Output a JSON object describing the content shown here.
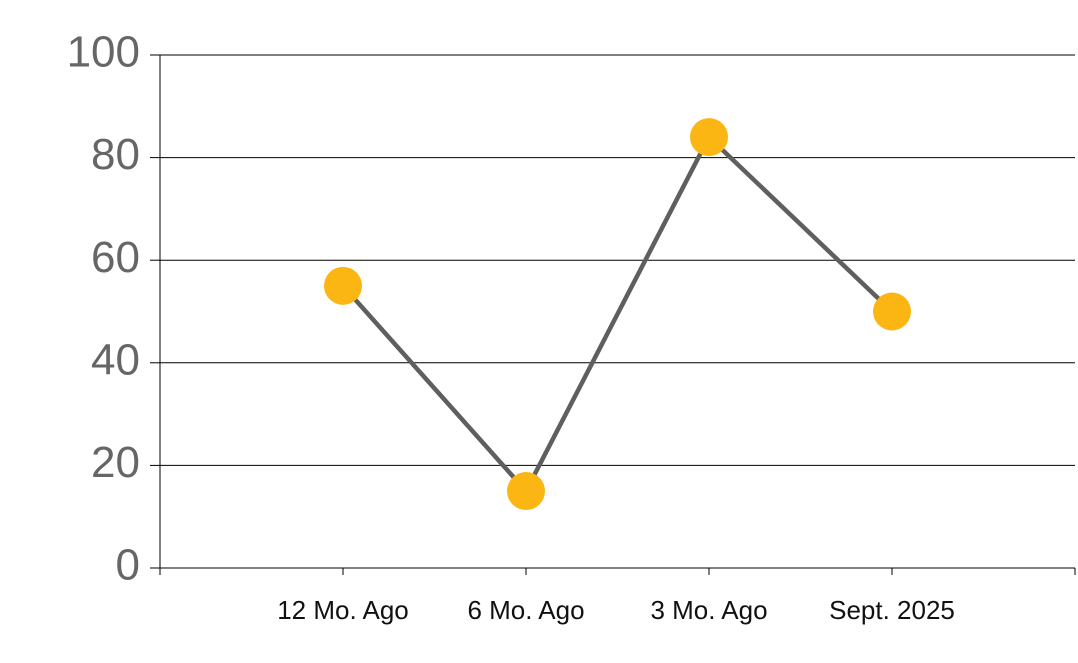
{
  "chart_data": {
    "type": "line",
    "categories": [
      null,
      "12 Mo. Ago",
      "6 Mo. Ago",
      "3 Mo. Ago",
      "Sept. 2025",
      null
    ],
    "series": [
      {
        "color": "#fbb614",
        "line_color": "#5f5f5f",
        "values": [
          null,
          55,
          15,
          84,
          50,
          null
        ]
      }
    ],
    "ylim": [
      0,
      100
    ],
    "yticks": [
      0,
      20,
      40,
      60,
      80,
      100
    ],
    "grid": true
  }
}
